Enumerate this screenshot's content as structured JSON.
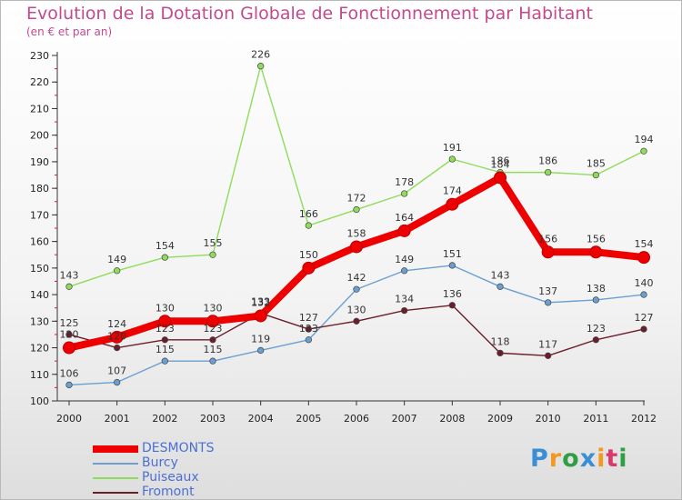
{
  "title": "Evolution de la Dotation Globale de Fonctionnement par Habitant",
  "subtitle": "(en € et par an)",
  "logo": {
    "text": "Proxiti",
    "letters": [
      {
        "ch": "P",
        "color": "#3a8ed6"
      },
      {
        "ch": "r",
        "color": "#f29a1f"
      },
      {
        "ch": "o",
        "color": "#2f9e44"
      },
      {
        "ch": "x",
        "color": "#3a8ed6"
      },
      {
        "ch": "i",
        "color": "#f29a1f"
      },
      {
        "ch": "t",
        "color": "#d93a6a"
      },
      {
        "ch": "i",
        "color": "#2f9e44"
      }
    ]
  },
  "chart_data": {
    "type": "line",
    "title": "Evolution de la Dotation Globale de Fonctionnement par Habitant",
    "subtitle": "(en € et par an)",
    "xlabel": "",
    "ylabel": "",
    "x": [
      "2000",
      "2001",
      "2002",
      "2003",
      "2004",
      "2005",
      "2006",
      "2007",
      "2008",
      "2009",
      "2010",
      "2011",
      "2012"
    ],
    "ylim": [
      100,
      230
    ],
    "yticks": [
      100,
      110,
      120,
      130,
      140,
      150,
      160,
      170,
      180,
      190,
      200,
      210,
      220,
      230
    ],
    "grid": false,
    "legend_position": "bottom-left",
    "series": [
      {
        "name": "DESMONTS",
        "color": "#ee0000",
        "values": [
          120,
          124,
          130,
          130,
          132,
          150,
          158,
          164,
          174,
          184,
          156,
          156,
          154
        ]
      },
      {
        "name": "Burcy",
        "color": "#6a9fd0",
        "values": [
          106,
          107,
          115,
          115,
          119,
          123,
          142,
          149,
          151,
          143,
          137,
          138,
          140
        ]
      },
      {
        "name": "Puiseaux",
        "color": "#8fdc5a",
        "values": [
          143,
          149,
          154,
          155,
          226,
          166,
          172,
          178,
          191,
          186,
          186,
          185,
          194
        ]
      },
      {
        "name": "Fromont",
        "color": "#6b1e2a",
        "values": [
          125,
          120,
          123,
          123,
          133,
          127,
          130,
          134,
          136,
          118,
          117,
          123,
          127
        ]
      }
    ]
  }
}
